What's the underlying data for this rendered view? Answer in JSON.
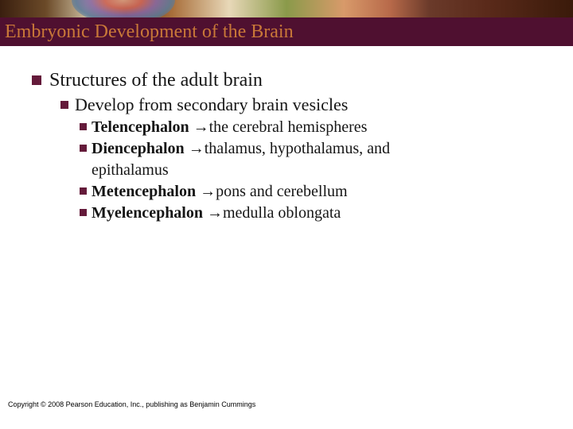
{
  "colors": {
    "title_bar_bg": "#4f1030",
    "title_text": "#c97838",
    "bullet": "#641a3a",
    "body_text": "#151515"
  },
  "title": "Embryonic Development of the Brain",
  "lvl1": "Structures of the adult brain",
  "lvl2": "Develop from secondary brain vesicles",
  "items": [
    {
      "term": "Telencephalon ",
      "arrow": "→",
      "rest": "the cerebral hemispheres"
    },
    {
      "term": "Diencephalon ",
      "arrow": "→",
      "rest": "thalamus, hypothalamus, and",
      "cont": "epithalamus"
    },
    {
      "term": "Metencephalon ",
      "arrow": "→",
      "rest": "pons and cerebellum"
    },
    {
      "term": "Myelencephalon ",
      "arrow": "→",
      "rest": "medulla oblongata"
    }
  ],
  "copyright": "Copyright © 2008 Pearson Education, Inc., publishing as Benjamin Cummings"
}
